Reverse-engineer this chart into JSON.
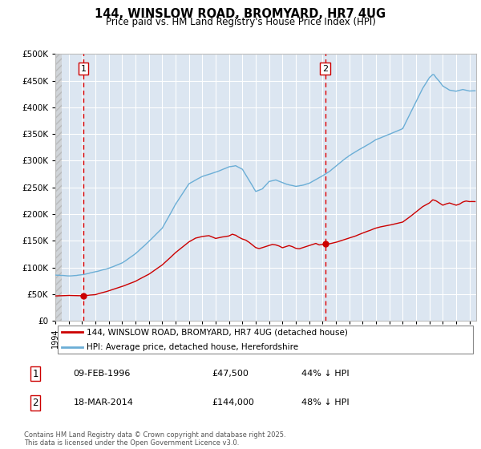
{
  "title": "144, WINSLOW ROAD, BROMYARD, HR7 4UG",
  "subtitle": "Price paid vs. HM Land Registry's House Price Index (HPI)",
  "legend_line1": "144, WINSLOW ROAD, BROMYARD, HR7 4UG (detached house)",
  "legend_line2": "HPI: Average price, detached house, Herefordshire",
  "marker1_year": 1996.1,
  "marker2_year": 2014.2,
  "marker1_price": 47500,
  "marker2_price": 144000,
  "annotation1": [
    "1",
    "09-FEB-1996",
    "£47,500",
    "44% ↓ HPI"
  ],
  "annotation2": [
    "2",
    "18-MAR-2014",
    "£144,000",
    "48% ↓ HPI"
  ],
  "footer": "Contains HM Land Registry data © Crown copyright and database right 2025.\nThis data is licensed under the Open Government Licence v3.0.",
  "ylim": [
    0,
    500000
  ],
  "yticks": [
    0,
    50000,
    100000,
    150000,
    200000,
    250000,
    300000,
    350000,
    400000,
    450000,
    500000
  ],
  "xlim_start": 1994.0,
  "xlim_end": 2025.5,
  "hpi_color": "#6baed6",
  "price_color": "#cc0000",
  "dashed_color": "#e00000",
  "bg_plot": "#dce6f1",
  "grid_color": "#ffffff"
}
